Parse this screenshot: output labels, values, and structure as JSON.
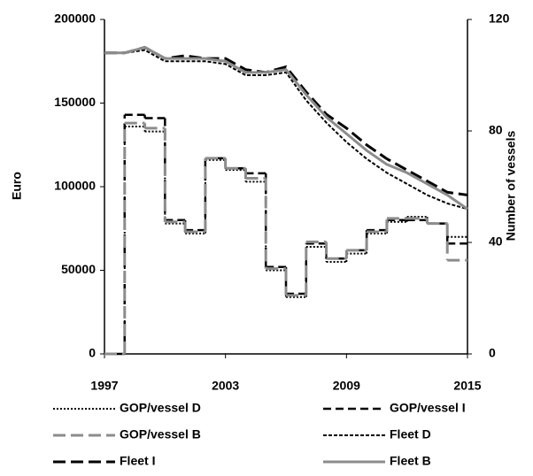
{
  "chart_data": {
    "type": "line",
    "ylabel": "Euro",
    "y2label": "Number of vessels",
    "xlim": [
      1997,
      2015
    ],
    "xticks": [
      1997,
      2003,
      2009,
      2015
    ],
    "ylim": [
      0,
      200000
    ],
    "yticks": [
      0,
      50000,
      100000,
      150000,
      200000
    ],
    "y2lim": [
      0,
      120
    ],
    "y2ticks": [
      0,
      40,
      80,
      120
    ],
    "series": [
      {
        "name": "GOP/vessel D",
        "color": "#000000",
        "dash": "2,2",
        "width": 2,
        "step": true,
        "x": [
          1997,
          1998,
          1999,
          2000,
          2001,
          2002,
          2003,
          2004,
          2005,
          2006,
          2007,
          2008,
          2009,
          2010,
          2011,
          2012,
          2013,
          2014
        ],
        "values": [
          0,
          136000,
          133000,
          78000,
          72000,
          116000,
          110000,
          103000,
          50000,
          34000,
          64000,
          55000,
          60000,
          72000,
          79000,
          82000,
          78000,
          70000
        ]
      },
      {
        "name": "GOP/vessel I",
        "color": "#000000",
        "dash": "9,5",
        "width": 2.5,
        "step": true,
        "x": [
          1997,
          1998,
          1999,
          2000,
          2001,
          2002,
          2003,
          2004,
          2005,
          2006,
          2007,
          2008,
          2009,
          2010,
          2011,
          2012,
          2013,
          2014
        ],
        "values": [
          0,
          143000,
          141000,
          80000,
          74000,
          117000,
          111000,
          108000,
          52000,
          36000,
          66000,
          57000,
          62000,
          74000,
          80000,
          80000,
          78000,
          66000
        ]
      },
      {
        "name": "GOP/vessel B",
        "color": "#8c8c8c",
        "dash": "14,6",
        "width": 3,
        "step": true,
        "x": [
          1997,
          1998,
          1999,
          2000,
          2001,
          2002,
          2003,
          2004,
          2005,
          2006,
          2007,
          2008,
          2009,
          2010,
          2011,
          2012,
          2013,
          2014
        ],
        "values": [
          0,
          138000,
          135000,
          79000,
          73000,
          117000,
          111000,
          105000,
          51000,
          35000,
          67000,
          57000,
          62000,
          73000,
          81000,
          81000,
          78000,
          56000
        ]
      },
      {
        "name": "Fleet D",
        "color": "#000000",
        "dash": "4,2",
        "width": 2,
        "axis": "y2",
        "x": [
          1997,
          1998,
          1999,
          2000,
          2001,
          2002,
          2003,
          2004,
          2005,
          2006,
          2007,
          2008,
          2009,
          2010,
          2011,
          2012,
          2013,
          2014,
          2015
        ],
        "values": [
          108,
          108,
          109,
          105,
          105,
          105,
          104,
          100,
          100,
          101,
          91,
          83,
          76,
          70,
          65,
          61,
          57,
          54,
          52
        ]
      },
      {
        "name": "Fleet I",
        "color": "#000000",
        "dash": "14,6",
        "width": 3,
        "axis": "y2",
        "x": [
          1997,
          1998,
          1999,
          2000,
          2001,
          2002,
          2003,
          2004,
          2005,
          2006,
          2007,
          2008,
          2009,
          2010,
          2011,
          2012,
          2013,
          2014,
          2015
        ],
        "values": [
          108,
          108,
          110,
          106,
          107,
          106,
          106,
          102,
          101,
          103,
          94,
          86,
          81,
          75,
          70,
          66,
          62,
          58,
          57
        ]
      },
      {
        "name": "Fleet B",
        "color": "#8c8c8c",
        "dash": "none",
        "width": 3,
        "axis": "y2",
        "x": [
          1997,
          1998,
          1999,
          2000,
          2001,
          2002,
          2003,
          2004,
          2005,
          2006,
          2007,
          2008,
          2009,
          2010,
          2011,
          2012,
          2013,
          2014,
          2015
        ],
        "values": [
          108,
          108,
          110,
          106,
          106,
          106,
          105,
          101,
          101,
          102,
          93,
          85,
          79,
          73,
          68,
          65,
          61,
          57,
          52
        ]
      }
    ]
  }
}
